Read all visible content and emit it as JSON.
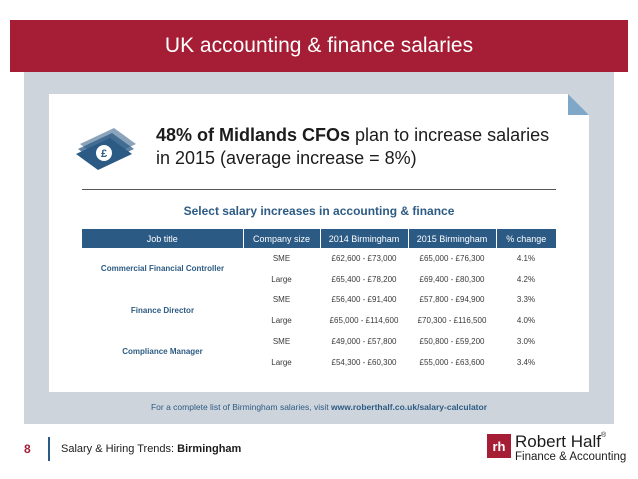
{
  "banner": {
    "title": "UK accounting & finance salaries"
  },
  "headline": {
    "bold": "48% of Midlands CFOs",
    "rest_line1": " plan to increase salaries",
    "line2": "in 2015 (average increase = 8%)"
  },
  "table": {
    "title": "Select salary increases in accounting & finance",
    "headers": [
      "Job title",
      "Company size",
      "2014 Birmingham",
      "2015 Birmingham",
      "% change"
    ],
    "groups": [
      {
        "job": "Commercial Financial Controller",
        "rows": [
          {
            "size": "SME",
            "y2014": "£62,600 - £73,000",
            "y2015": "£65,000 - £76,300",
            "change": "4.1%"
          },
          {
            "size": "Large",
            "y2014": "£65,400 - £78,200",
            "y2015": "£69,400 - £80,300",
            "change": "4.2%"
          }
        ]
      },
      {
        "job": "Finance Director",
        "rows": [
          {
            "size": "SME",
            "y2014": "£56,400 - £91,400",
            "y2015": "£57,800 - £94,900",
            "change": "3.3%"
          },
          {
            "size": "Large",
            "y2014": "£65,000 - £114,600",
            "y2015": "£70,300 - £116,500",
            "change": "4.0%"
          }
        ]
      },
      {
        "job": "Compliance Manager",
        "rows": [
          {
            "size": "SME",
            "y2014": "£49,000 - £57,800",
            "y2015": "£50,800 - £59,200",
            "change": "3.0%"
          },
          {
            "size": "Large",
            "y2014": "£54,300 - £60,300",
            "y2015": "£55,000 - £63,600",
            "change": "3.4%"
          }
        ]
      }
    ]
  },
  "footnote": {
    "text": "For a complete list of Birmingham salaries, visit ",
    "url": "www.roberthalf.co.uk/salary-calculator"
  },
  "footer": {
    "page_number": "8",
    "title_prefix": "Salary & Hiring Trends: ",
    "title_bold": "Birmingham"
  },
  "logo": {
    "mark": "rh",
    "name": "Robert Half",
    "registered": "®",
    "tagline": "Finance & Accounting"
  },
  "colors": {
    "brand_red": "#a51e36",
    "table_blue": "#2b5a85",
    "panel_gray": "#cdd4dc"
  },
  "icons": [
    "money-stack-icon",
    "folded-corner-icon"
  ]
}
